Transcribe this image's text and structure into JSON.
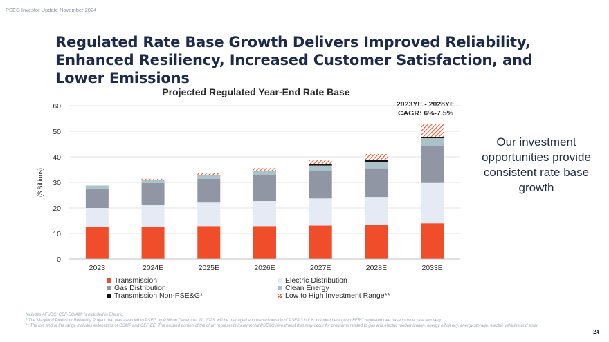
{
  "header": {
    "note": "PSEG Investor Update November 2024"
  },
  "slide": {
    "title": "Regulated Rate Base Growth Delivers Improved Reliability, Enhanced Resiliency, Increased Customer Satisfaction, and Lower Emissions",
    "side_text": "Our investment opportunities provide consistent rate base growth",
    "page_number": "24"
  },
  "footnotes": {
    "line1": "Includes AFUDC. CEF-EC/AMI is included in Electric.",
    "line2": "* The Maryland Piedmont Reliability Project that was awarded to PSEG by PJM on December 11, 2023, will be managed and owned outside of PSE&G but is included here given FERC regulated rate base formula rate recovery.",
    "line3": "** The low end of the range includes extensions of GSMP and CEF-EE. The hashed portion of the chart represents incremental PSE&G investment that may occur for programs related to gas and electric modernization, energy efficiency, energy storage, electric vehicles and solar."
  },
  "colors": {
    "transmission": "#f04e2a",
    "electric_distribution": "#e6eaf5",
    "gas_distribution": "#9196a5",
    "clean_energy": "#a9c3c8",
    "transmission_non_pseg": "#111111",
    "range_hatch": "#f04e2a",
    "grid": "#d9d9d9"
  },
  "chart_data": {
    "type": "bar",
    "stacked": true,
    "title": "Projected Regulated Year-End Rate Base",
    "annotation": "2023YE - 2028YE CAGR: 6%-7.5%",
    "annotation_line1": "2023YE - 2028YE",
    "annotation_line2": "CAGR: 6%-7.5%",
    "ylabel": "($ Billions)",
    "xlabel": "",
    "ylim": [
      0,
      60
    ],
    "yticks": [
      0,
      10,
      20,
      30,
      40,
      50,
      60
    ],
    "grid": true,
    "categories": [
      "2023",
      "2024E",
      "2025E",
      "2026E",
      "2027E",
      "2028E",
      "2033E"
    ],
    "series": [
      {
        "name": "Transmission",
        "key": "transmission",
        "pattern": "solid",
        "values": [
          12.5,
          12.7,
          12.9,
          12.9,
          13.1,
          13.3,
          14.0
        ]
      },
      {
        "name": "Electric Distribution",
        "key": "electric_distribution",
        "pattern": "solid",
        "values": [
          7.5,
          8.6,
          9.2,
          9.8,
          10.6,
          11.0,
          15.8
        ]
      },
      {
        "name": "Gas Distribution",
        "key": "gas_distribution",
        "pattern": "solid",
        "values": [
          7.6,
          8.5,
          9.3,
          10.1,
          10.7,
          11.2,
          14.6
        ]
      },
      {
        "name": "Clean Energy",
        "key": "clean_energy",
        "pattern": "solid",
        "values": [
          1.2,
          1.3,
          1.5,
          1.6,
          2.2,
          2.6,
          2.9
        ]
      },
      {
        "name": "Transmission Non-PSE&G*",
        "key": "transmission_non_pseg",
        "pattern": "solid",
        "values": [
          0,
          0,
          0,
          0,
          0.6,
          0.6,
          0.4
        ]
      },
      {
        "name": "Low to High Investment Range**",
        "key": "range_hatch",
        "pattern": "hatch",
        "values": [
          0,
          0.3,
          0.7,
          1.2,
          1.5,
          2.4,
          5.3
        ]
      }
    ],
    "legend": {
      "placement": "bottom",
      "items": [
        {
          "label": "Transmission",
          "key": "transmission"
        },
        {
          "label": "Electric Distribution",
          "key": "electric_distribution"
        },
        {
          "label": "Gas Distribution",
          "key": "gas_distribution"
        },
        {
          "label": "Clean Energy",
          "key": "clean_energy"
        },
        {
          "label": "Transmission Non-PSE&G*",
          "key": "transmission_non_pseg"
        },
        {
          "label": "Low to High Investment Range**",
          "key": "range_hatch"
        }
      ]
    }
  }
}
